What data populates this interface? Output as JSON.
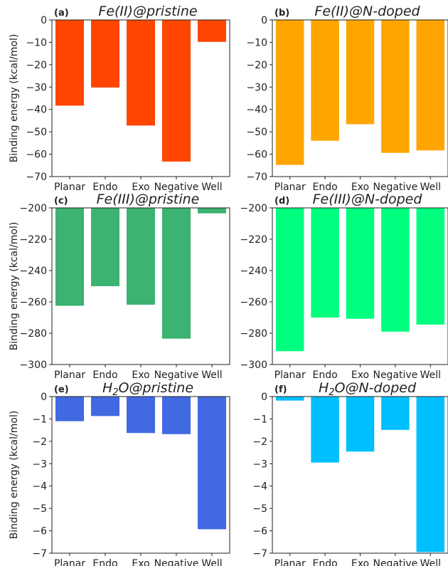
{
  "y_axis_label": "Binding energy (kcal/mol)",
  "chart_data": [
    {
      "type": "bar",
      "letter": "(a)",
      "title": "Fe(II)@pristine",
      "title_html": null,
      "categories": [
        "Planar",
        "Endo",
        "Exo",
        "Negative",
        "Well"
      ],
      "values": [
        -38.3,
        -30.2,
        -47.2,
        -63.3,
        -9.8
      ],
      "color": "#ff4500",
      "ylim": [
        -70,
        0
      ],
      "yticks": [
        0,
        -10,
        -20,
        -30,
        -40,
        -50,
        -60,
        -70
      ],
      "ylabel": "Binding energy (kcal/mol)"
    },
    {
      "type": "bar",
      "letter": "(b)",
      "title": "Fe(II)@N-doped",
      "categories": [
        "Planar",
        "Endo",
        "Exo",
        "Negative",
        "Well"
      ],
      "values": [
        -64.8,
        -54.0,
        -46.6,
        -59.4,
        -58.3
      ],
      "color": "#ffa500",
      "ylim": [
        -70,
        0
      ],
      "yticks": [
        0,
        -10,
        -20,
        -30,
        -40,
        -50,
        -60,
        -70
      ],
      "ylabel": ""
    },
    {
      "type": "bar",
      "letter": "(c)",
      "title": "Fe(III)@pristine",
      "categories": [
        "Planar",
        "Endo",
        "Exo",
        "Negative",
        "Well"
      ],
      "values": [
        -262.5,
        -250.0,
        -261.8,
        -283.5,
        -203.5
      ],
      "color": "#3cb371",
      "ylim": [
        -300,
        -200
      ],
      "yticks": [
        -200,
        -220,
        -240,
        -260,
        -280,
        -300
      ],
      "ylabel": "Binding energy (kcal/mol)"
    },
    {
      "type": "bar",
      "letter": "(d)",
      "title": "Fe(III)@N-doped",
      "categories": [
        "Planar",
        "Endo",
        "Exo",
        "Negative",
        "Well"
      ],
      "values": [
        -291.5,
        -270.0,
        -270.8,
        -279.0,
        -274.5
      ],
      "color": "#00ff7f",
      "ylim": [
        -300,
        -200
      ],
      "yticks": [
        -200,
        -220,
        -240,
        -260,
        -280,
        -300
      ],
      "ylabel": ""
    },
    {
      "type": "bar",
      "letter": "(e)",
      "title_main": "H",
      "title_sub": "2",
      "title_rest": "O@pristine",
      "categories": [
        "Planar",
        "Endo",
        "Exo",
        "Negative",
        "Well"
      ],
      "values": [
        -1.1,
        -0.87,
        -1.63,
        -1.68,
        -5.93
      ],
      "color": "#4169e1",
      "ylim": [
        -7,
        0
      ],
      "yticks": [
        0,
        -1,
        -2,
        -3,
        -4,
        -5,
        -6,
        -7
      ],
      "ylabel": "Binding energy (kcal/mol)"
    },
    {
      "type": "bar",
      "letter": "(f)",
      "title_main": "H",
      "title_sub": "2",
      "title_rest": "O@N-doped",
      "categories": [
        "Planar",
        "Endo",
        "Exo",
        "Negative",
        "Well"
      ],
      "values": [
        -0.18,
        -2.95,
        -2.46,
        -1.49,
        -6.95
      ],
      "color": "#00bfff",
      "ylim": [
        -7,
        0
      ],
      "yticks": [
        0,
        -1,
        -2,
        -3,
        -4,
        -5,
        -6,
        -7
      ],
      "ylabel": ""
    }
  ]
}
